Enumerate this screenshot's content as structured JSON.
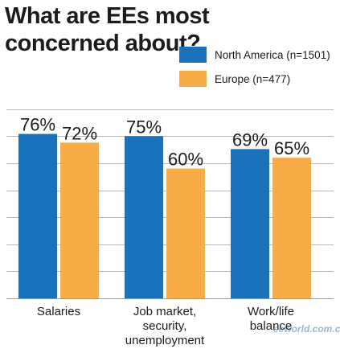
{
  "chart_data": {
    "type": "bar",
    "title": "What are EEs most concerned about?",
    "categories": [
      [
        "Salaries"
      ],
      [
        "Job market,",
        "security,",
        "unemployment"
      ],
      [
        "Work/life",
        "balance"
      ]
    ],
    "series": [
      {
        "name": "North America (n=1501)",
        "values": [
          76,
          75,
          69
        ],
        "labels": [
          "76%",
          "75%",
          "69%"
        ],
        "color": "#1b72bc"
      },
      {
        "name": "Europe (n=477)",
        "values": [
          72,
          60,
          65
        ],
        "labels": [
          "72%",
          "60%",
          "65%"
        ],
        "color": "#f7ac45"
      }
    ],
    "ylim": [
      0,
      100
    ],
    "grid": true,
    "legend_position": "top-right"
  },
  "watermark": {
    "brand": "eeworld.com.cn"
  }
}
